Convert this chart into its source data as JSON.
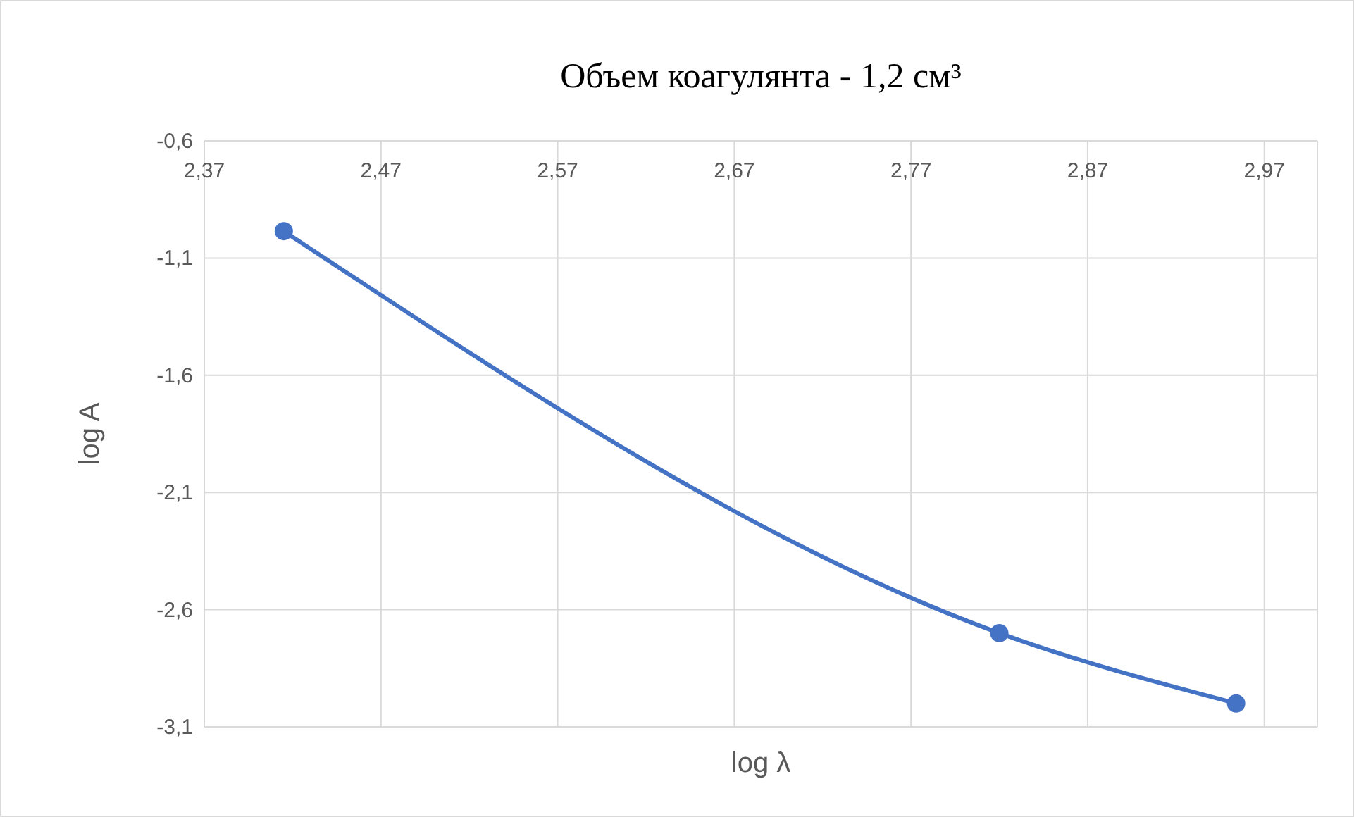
{
  "chart_data": {
    "type": "line",
    "title": "Объем коагулянта - 1,2 см³",
    "xlabel": "log λ",
    "ylabel": "log A",
    "x": [
      2.415,
      2.82,
      2.954
    ],
    "series": [
      {
        "color": "#4472c4",
        "values": [
          -0.985,
          -2.7,
          -3.0
        ]
      }
    ],
    "xlim": [
      2.37,
      3.0
    ],
    "xticks": [
      {
        "value": 2.37,
        "label": "2,37"
      },
      {
        "value": 2.47,
        "label": "2,47"
      },
      {
        "value": 2.57,
        "label": "2,57"
      },
      {
        "value": 2.67,
        "label": "2,67"
      },
      {
        "value": 2.77,
        "label": "2,77"
      },
      {
        "value": 2.87,
        "label": "2,87"
      },
      {
        "value": 2.97,
        "label": "2,97"
      }
    ],
    "ylim": [
      -3.1,
      -0.6
    ],
    "yticks": [
      {
        "value": -0.6,
        "label": "-0,6"
      },
      {
        "value": -1.1,
        "label": "-1,1"
      },
      {
        "value": -1.6,
        "label": "-1,6"
      },
      {
        "value": -2.1,
        "label": "-2,1"
      },
      {
        "value": -2.6,
        "label": "-2,6"
      },
      {
        "value": -3.1,
        "label": "-3,1"
      }
    ],
    "grid": true,
    "marker": "circle",
    "line_style": "solid"
  }
}
